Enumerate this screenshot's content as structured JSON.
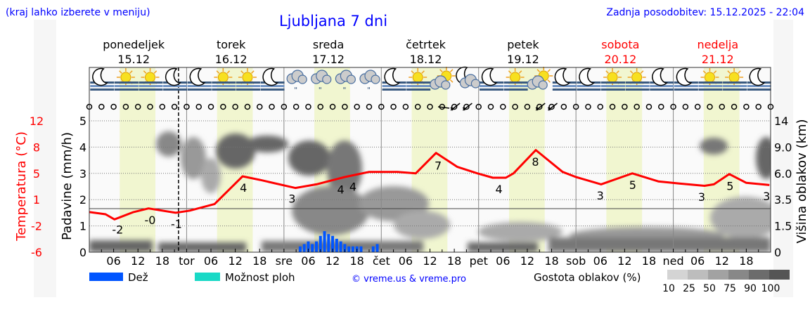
{
  "header": {
    "hint": "(kraj lahko izberete v meniju)",
    "title": "Ljubljana 7 dni",
    "updated": "Zadnja posodobitev: 15.12.2025 - 22:04"
  },
  "days": [
    {
      "name": "ponedeljek",
      "date": "15.12",
      "weekend": false
    },
    {
      "name": "torek",
      "date": "16.12",
      "weekend": false
    },
    {
      "name": "sreda",
      "date": "17.12",
      "weekend": false
    },
    {
      "name": "četrtek",
      "date": "18.12",
      "weekend": false
    },
    {
      "name": "petek",
      "date": "19.12",
      "weekend": false
    },
    {
      "name": "sobota",
      "date": "20.12",
      "weekend": true
    },
    {
      "name": "nedelja",
      "date": "21.12",
      "weekend": true
    }
  ],
  "weather_icons": [
    "moon",
    "sun",
    "sun",
    "moon",
    "moon",
    "sun",
    "sun",
    "moon",
    "rain-cloud",
    "rain-cloud",
    "rain-cloud",
    "rain-cloud",
    "moon",
    "sun",
    "sun-cloud",
    "moon-cloud",
    "moon",
    "sun",
    "sun-cloud",
    "moon",
    "moon",
    "sun",
    "sun",
    "moon",
    "moon",
    "sun",
    "sun",
    "moon"
  ],
  "colors": {
    "temperature": "#ff0000",
    "rain": "#0055ff",
    "showers": "#19d9c6",
    "daylight": "#eef5c8",
    "weekend": "#ff0000",
    "title": "#0000ff"
  },
  "chart_data": {
    "type": "line",
    "x_unit": "hours from Mon 15.12 00:00",
    "x_tick_labels": [
      "06",
      "12",
      "18",
      "tor",
      "06",
      "12",
      "18",
      "sre",
      "06",
      "12",
      "18",
      "čet",
      "06",
      "12",
      "18",
      "pet",
      "06",
      "12",
      "18",
      "sob",
      "06",
      "12",
      "18",
      "ned",
      "06",
      "12",
      "18"
    ],
    "left_axis_temp": {
      "label": "Temperatura (°C)",
      "ticks": [
        "12",
        "8",
        "5",
        "1",
        "-2",
        "-6"
      ],
      "range": [
        -6,
        12
      ]
    },
    "left_axis_precip": {
      "label": "Padavine (mm/h)",
      "ticks": [
        "5",
        "4",
        "3",
        "2",
        "1",
        "0"
      ],
      "range": [
        0,
        5
      ]
    },
    "right_axis_cloud": {
      "label": "Višina oblakov (km)",
      "ticks": [
        "14",
        "9.0",
        "6.0",
        "3.5",
        "1.5",
        "0"
      ]
    },
    "grid": true,
    "temperature": {
      "hours": [
        0,
        4,
        6.2,
        10.9,
        14.6,
        21.3,
        24.8,
        30.9,
        37.8,
        42.1,
        50.8,
        56,
        63,
        69,
        76,
        80.5,
        85.5,
        90.7,
        95.7,
        99.5,
        102.7,
        104.6,
        110.1,
        116.7,
        120,
        126.2,
        133.9,
        140.3,
        145.5,
        151.7,
        154,
        157.8,
        162,
        167.7
      ],
      "values": [
        -0.5,
        -0.8,
        -1.5,
        -0.5,
        0.0,
        -0.6,
        -0.3,
        0.6,
        4.4,
        3.9,
        2.8,
        3.3,
        4.3,
        5.0,
        5.0,
        4.8,
        7.6,
        5.7,
        4.8,
        4.2,
        4.2,
        4.8,
        8.0,
        5.0,
        4.3,
        3.3,
        4.8,
        3.7,
        3.4,
        3.1,
        3.3,
        4.7,
        3.5,
        3.2
      ]
    },
    "temp_labels": [
      {
        "hour": 7,
        "text": "-2"
      },
      {
        "hour": 15,
        "text": "-0"
      },
      {
        "hour": 21.5,
        "text": "-1"
      },
      {
        "hour": 38,
        "text": "4"
      },
      {
        "hour": 50,
        "text": "3"
      },
      {
        "hour": 62,
        "text": "4"
      },
      {
        "hour": 65,
        "text": "4"
      },
      {
        "hour": 86,
        "text": "7"
      },
      {
        "hour": 101,
        "text": "4"
      },
      {
        "hour": 110,
        "text": "8"
      },
      {
        "hour": 126,
        "text": "3"
      },
      {
        "hour": 134,
        "text": "5"
      },
      {
        "hour": 151,
        "text": "3"
      },
      {
        "hour": 158,
        "text": "5"
      },
      {
        "hour": 167,
        "text": "3"
      }
    ],
    "rain": {
      "hours": [
        52,
        53,
        54,
        55,
        56,
        57,
        58,
        59,
        60,
        61,
        62,
        63,
        64,
        65,
        66,
        67,
        70,
        71
      ],
      "values": [
        0.22,
        0.31,
        0.41,
        0.31,
        0.41,
        0.62,
        0.8,
        0.69,
        0.62,
        0.51,
        0.41,
        0.31,
        0.22,
        0.22,
        0.22,
        0.22,
        0.22,
        0.31
      ]
    },
    "daylight_hours": [
      7.5,
      16.3
    ],
    "now_hour": 22
  },
  "legend": {
    "rain": "Dež",
    "showers": "Možnost ploh",
    "credit": "© vreme.us & vreme.pro",
    "cloud_density": "Gostota oblakov (%)",
    "density_levels": [
      "10",
      "25",
      "50",
      "75",
      "90",
      "100"
    ]
  }
}
